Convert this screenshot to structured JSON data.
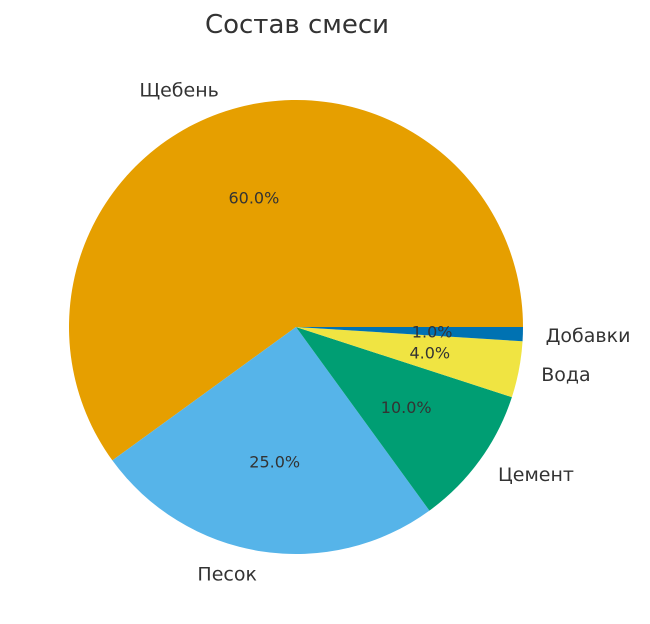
{
  "chart_data": {
    "type": "pie",
    "title": "Состав смеси",
    "categories": [
      "Щебень",
      "Песок",
      "Цемент",
      "Вода",
      "Добавки"
    ],
    "values": [
      60.0,
      25.0,
      10.0,
      4.0,
      1.0
    ],
    "percent_labels": [
      "60.0%",
      "25.0%",
      "10.0%",
      "4.0%",
      "1.0%"
    ],
    "colors": [
      "#E69F00",
      "#56B4E9",
      "#009E73",
      "#F0E442",
      "#0072B2"
    ],
    "start": "3 o'clock, counter-clockwise order reversed (clockwise from east going up)",
    "legend": "none"
  }
}
